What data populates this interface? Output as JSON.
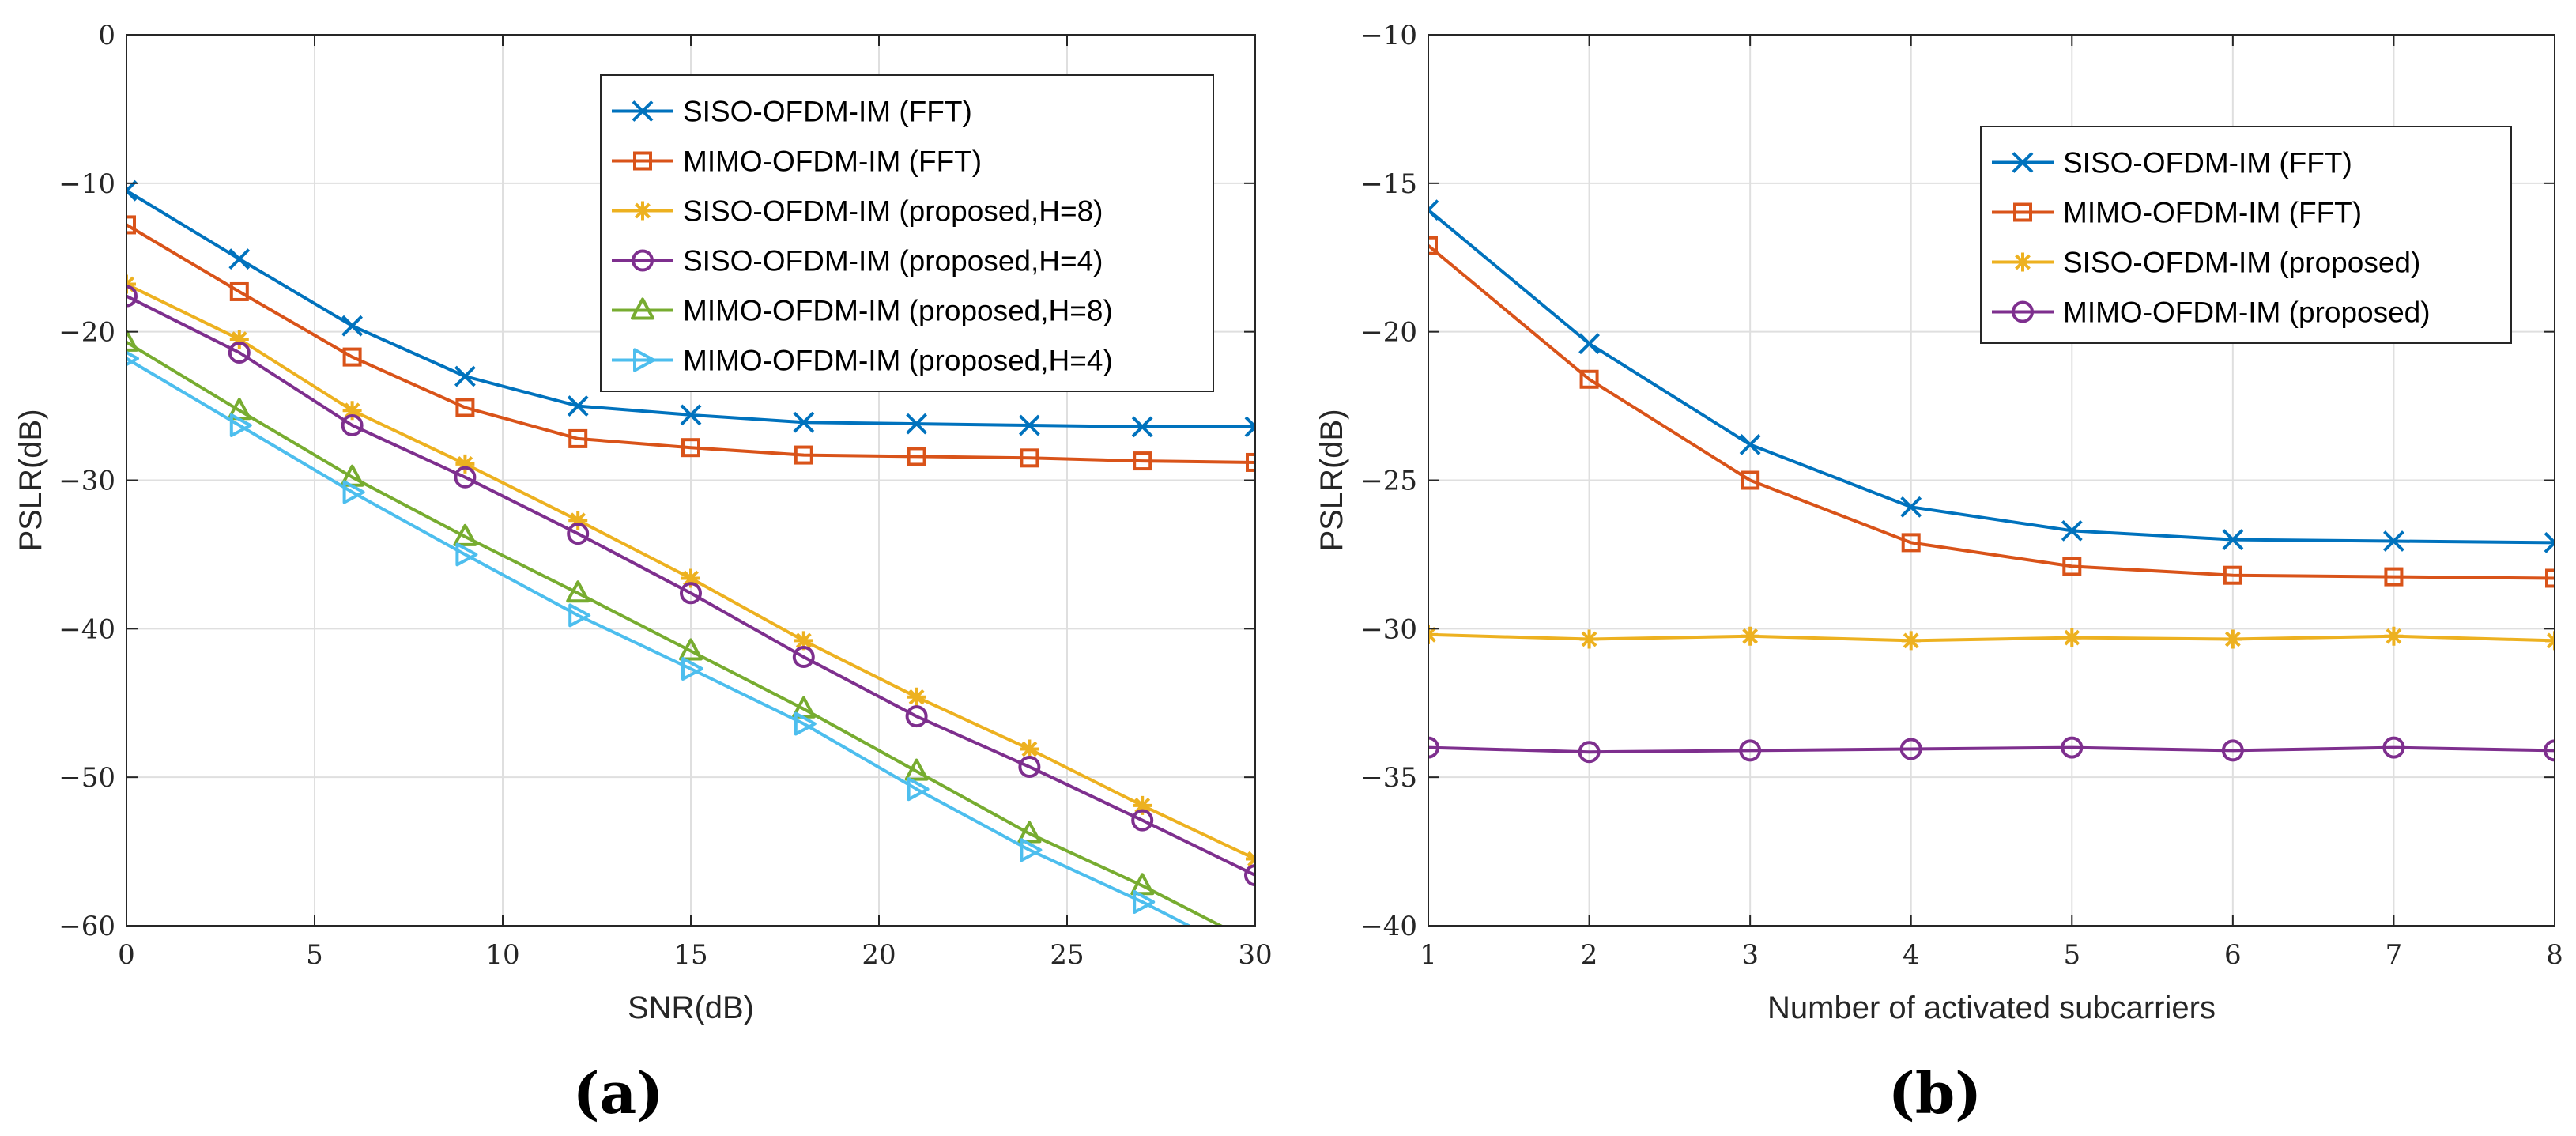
{
  "chart_data": [
    {
      "type": "line",
      "panel_label": "(a)",
      "title": "",
      "xlabel": "SNR(dB)",
      "ylabel": "PSLR(dB)",
      "xlim": [
        0,
        30
      ],
      "ylim": [
        -60,
        0
      ],
      "xticks": [
        0,
        5,
        10,
        15,
        20,
        25,
        30
      ],
      "yticks": [
        0,
        -10,
        -20,
        -30,
        -40,
        -50,
        -60
      ],
      "xtick_labels": [
        "0",
        "5",
        "10",
        "15",
        "20",
        "25",
        "30"
      ],
      "ytick_labels": [
        "0",
        "−10",
        "−20",
        "−30",
        "−40",
        "−50",
        "−60"
      ],
      "grid": true,
      "legend_position": "top-right",
      "x": [
        0,
        3,
        6,
        9,
        12,
        15,
        18,
        21,
        24,
        27,
        30
      ],
      "series": [
        {
          "name": "SISO-OFDM-IM (FFT)",
          "color": "#0072bd",
          "marker": "x",
          "values": [
            -10.5,
            -15.1,
            -19.6,
            -23.0,
            -25.0,
            -25.6,
            -26.1,
            -26.2,
            -26.3,
            -26.4,
            -26.4
          ]
        },
        {
          "name": "MIMO-OFDM-IM (FFT)",
          "color": "#d95319",
          "marker": "square",
          "values": [
            -12.8,
            -17.3,
            -21.7,
            -25.1,
            -27.2,
            -27.8,
            -28.3,
            -28.4,
            -28.5,
            -28.7,
            -28.8
          ]
        },
        {
          "name": "SISO-OFDM-IM (proposed,H=8)",
          "color": "#edb120",
          "marker": "star",
          "values": [
            -16.8,
            -20.5,
            -25.3,
            -28.9,
            -32.7,
            -36.6,
            -40.8,
            -44.6,
            -48.1,
            -51.9,
            -55.5
          ]
        },
        {
          "name": "SISO-OFDM-IM (proposed,H=4)",
          "color": "#7e2f8e",
          "marker": "circle",
          "values": [
            -17.6,
            -21.4,
            -26.3,
            -29.8,
            -33.6,
            -37.6,
            -41.9,
            -45.9,
            -49.3,
            -52.9,
            -56.6
          ]
        },
        {
          "name": "MIMO-OFDM-IM (proposed,H=8)",
          "color": "#77ac30",
          "marker": "triangle-up",
          "values": [
            -20.7,
            -25.3,
            -29.8,
            -33.8,
            -37.6,
            -41.5,
            -45.4,
            -49.6,
            -53.8,
            -57.3,
            -61.2
          ]
        },
        {
          "name": "MIMO-OFDM-IM (proposed,H=4)",
          "color": "#4dbeee",
          "marker": "triangle-right",
          "values": [
            -21.8,
            -26.3,
            -30.8,
            -35.0,
            -39.1,
            -42.7,
            -46.4,
            -50.8,
            -54.9,
            -58.4,
            -62.3
          ]
        }
      ]
    },
    {
      "type": "line",
      "panel_label": "(b)",
      "title": "",
      "xlabel": "Number of activated subcarriers",
      "ylabel": "PSLR(dB)",
      "xlim": [
        1,
        8
      ],
      "ylim": [
        -40,
        -10
      ],
      "xticks": [
        1,
        2,
        3,
        4,
        5,
        6,
        7,
        8
      ],
      "yticks": [
        -10,
        -15,
        -20,
        -25,
        -30,
        -35,
        -40
      ],
      "xtick_labels": [
        "1",
        "2",
        "3",
        "4",
        "5",
        "6",
        "7",
        "8"
      ],
      "ytick_labels": [
        "−10",
        "−15",
        "−20",
        "−25",
        "−30",
        "−35",
        "−40"
      ],
      "grid": true,
      "legend_position": "top-right",
      "x": [
        1,
        2,
        3,
        4,
        5,
        6,
        7,
        8
      ],
      "series": [
        {
          "name": "SISO-OFDM-IM (FFT)",
          "color": "#0072bd",
          "marker": "x",
          "values": [
            -15.9,
            -20.4,
            -23.8,
            -25.9,
            -26.7,
            -27.0,
            -27.05,
            -27.1
          ]
        },
        {
          "name": "MIMO-OFDM-IM (FFT)",
          "color": "#d95319",
          "marker": "square",
          "values": [
            -17.1,
            -21.6,
            -25.0,
            -27.1,
            -27.9,
            -28.2,
            -28.25,
            -28.3
          ]
        },
        {
          "name": "SISO-OFDM-IM (proposed)",
          "color": "#edb120",
          "marker": "star",
          "values": [
            -30.2,
            -30.35,
            -30.25,
            -30.4,
            -30.3,
            -30.35,
            -30.25,
            -30.4
          ]
        },
        {
          "name": "MIMO-OFDM-IM (proposed)",
          "color": "#7e2f8e",
          "marker": "circle",
          "values": [
            -34.0,
            -34.15,
            -34.1,
            -34.05,
            -34.0,
            -34.1,
            -34.0,
            -34.1
          ]
        }
      ]
    }
  ]
}
